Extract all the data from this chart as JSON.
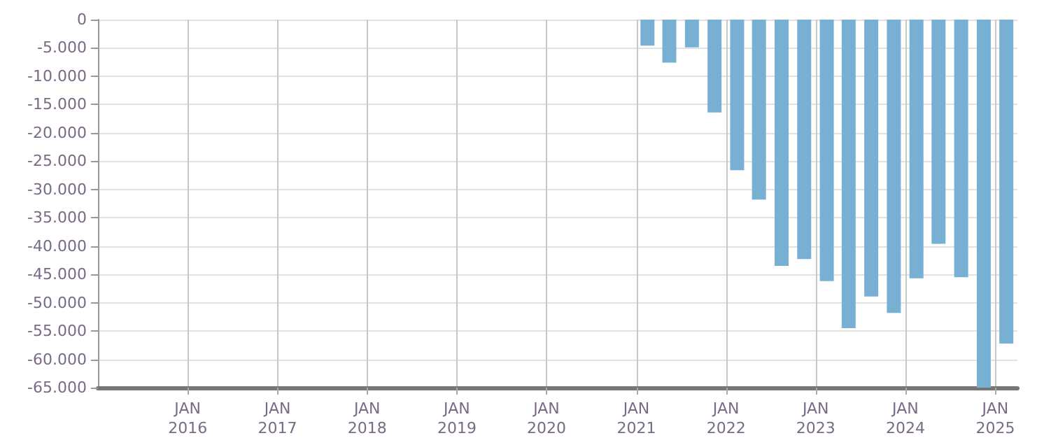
{
  "chart_data": {
    "type": "bar",
    "x": [
      "2021-02-15",
      "2021-05-15",
      "2021-08-15",
      "2021-11-15",
      "2022-02-15",
      "2022-05-15",
      "2022-08-15",
      "2022-11-15",
      "2023-02-15",
      "2023-05-15",
      "2023-08-15",
      "2023-11-15",
      "2024-02-15",
      "2024-05-15",
      "2024-08-15",
      "2024-11-15",
      "2025-02-15"
    ],
    "series": [
      {
        "color": "#78b0d3",
        "values": [
          -4600,
          -7600,
          -4900,
          -16400,
          -26600,
          -31800,
          -43500,
          -42300,
          -46200,
          -54500,
          -48900,
          -51800,
          -45700,
          -39600,
          -45500,
          -65000,
          -57200
        ]
      }
    ],
    "xlim": [
      "2015-01-01",
      "2025-04-01"
    ],
    "xticks": [
      {
        "value": "2016-01-01",
        "label": "JAN\n2016"
      },
      {
        "value": "2017-01-01",
        "label": "JAN\n2017"
      },
      {
        "value": "2018-01-01",
        "label": "JAN\n2018"
      },
      {
        "value": "2019-01-01",
        "label": "JAN\n2019"
      },
      {
        "value": "2020-01-01",
        "label": "JAN\n2020"
      },
      {
        "value": "2021-01-01",
        "label": "JAN\n2021"
      },
      {
        "value": "2022-01-01",
        "label": "JAN\n2022"
      },
      {
        "value": "2023-01-01",
        "label": "JAN\n2023"
      },
      {
        "value": "2024-01-01",
        "label": "JAN\n2024"
      },
      {
        "value": "2025-01-01",
        "label": "JAN\n2025"
      }
    ],
    "ylim": [
      -65000,
      0
    ],
    "yticks": [
      0,
      {
        "value": -5000,
        "label": "-5.000"
      },
      {
        "value": -10000,
        "label": "-10.000"
      },
      {
        "value": -15000,
        "label": "-15.000"
      },
      {
        "value": -20000,
        "label": "-20.000"
      },
      {
        "value": -25000,
        "label": "-25.000"
      },
      {
        "value": -30000,
        "label": "-30.000"
      },
      {
        "value": -35000,
        "label": "-35.000"
      },
      {
        "value": -40000,
        "label": "-40.000"
      },
      {
        "value": -45000,
        "label": "-45.000"
      },
      {
        "value": -50000,
        "label": "-50.000"
      },
      {
        "value": -55000,
        "label": "-55.000"
      },
      {
        "value": -60000,
        "label": "-60.000"
      },
      {
        "value": -65000,
        "label": "-65.000"
      }
    ],
    "grid": true
  }
}
